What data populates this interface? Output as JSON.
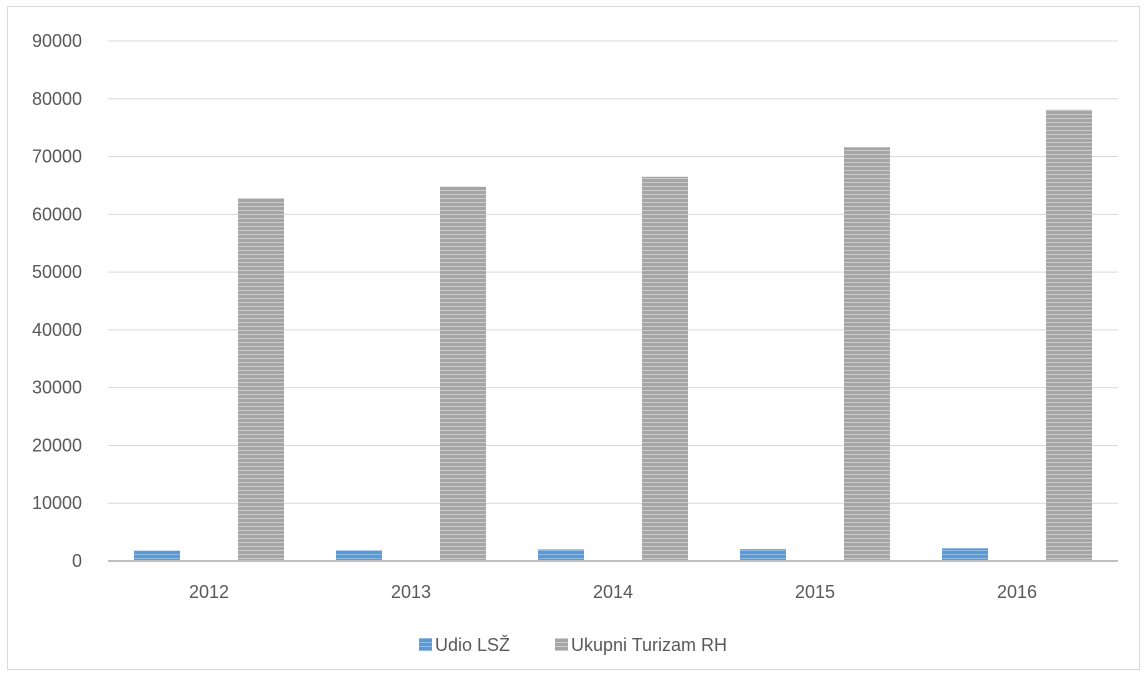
{
  "chart_data": {
    "type": "bar",
    "categories": [
      "2012",
      "2013",
      "2014",
      "2015",
      "2016"
    ],
    "series": [
      {
        "name": "Udio LSŽ",
        "values": [
          1800,
          1850,
          2000,
          2050,
          2200
        ],
        "color": "#5b9bd5"
      },
      {
        "name": "Ukupni Turizam RH",
        "values": [
          62800,
          64800,
          66500,
          71600,
          78100
        ],
        "color": "#a5a5a5"
      }
    ],
    "title": "",
    "xlabel": "",
    "ylabel": "",
    "ylim": [
      0,
      90000
    ],
    "yticks": [
      "0",
      "10000",
      "20000",
      "30000",
      "40000",
      "50000",
      "60000",
      "70000",
      "80000",
      "90000"
    ],
    "grid": true,
    "legend_position": "bottom"
  }
}
